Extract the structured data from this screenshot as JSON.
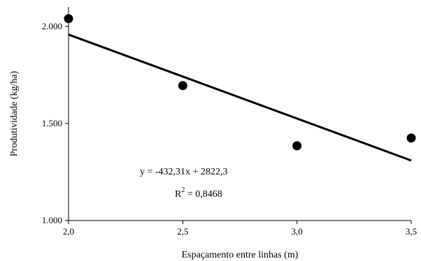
{
  "chart_data": {
    "type": "scatter",
    "xlabel": "Espaçamento entre linhas (m)",
    "ylabel": "Produtividade (kg/ha)",
    "xlim": [
      2.0,
      3.5
    ],
    "ylim": [
      1000,
      2100
    ],
    "x_ticks": [
      2.0,
      2.5,
      3.0,
      3.5
    ],
    "x_tick_labels": [
      "2,0",
      "2,5",
      "3,0",
      "3,5"
    ],
    "y_ticks": [
      1000,
      1500,
      2000
    ],
    "y_tick_labels": [
      "1.000",
      "1.500",
      "2.000"
    ],
    "grid": false,
    "series": [
      {
        "x": [
          2.0,
          2.5,
          3.0,
          3.5
        ],
        "y": [
          2040,
          1695,
          1385,
          1425
        ],
        "marker": "circle",
        "color": "#000000"
      }
    ],
    "trendline": {
      "slope": -432.31,
      "intercept": 2822.3,
      "color": "#000000"
    },
    "annotations": {
      "equation": "y = -432,31x + 2822,3",
      "r2_prefix": "R",
      "r2_sup": "2",
      "r2_value": " = 0,8468"
    }
  }
}
